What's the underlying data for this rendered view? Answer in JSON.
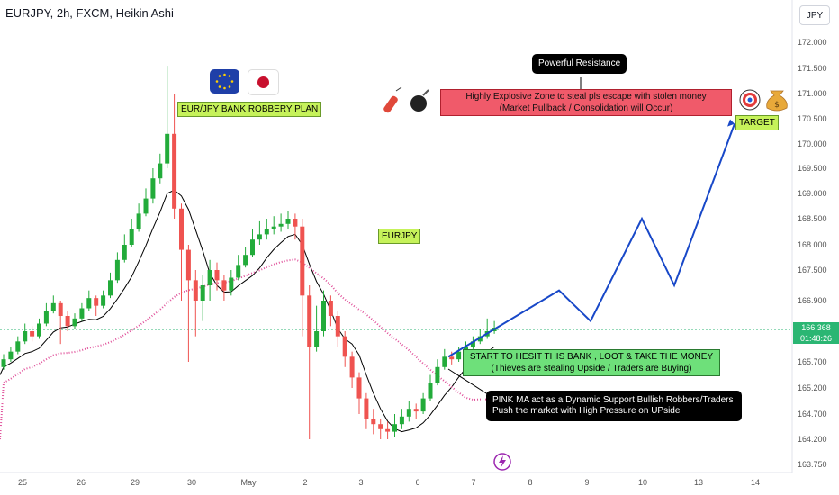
{
  "header": {
    "title": "EURJPY, 2h, FXCM, Heikin Ashi",
    "currency": "JPY"
  },
  "colors": {
    "bull": "#26a69a",
    "bullBright": "#22ab3a",
    "bear": "#ef5350",
    "ma_black": "#000000",
    "ma_pink": "#e0509a",
    "projection": "#1848c8",
    "priceLine": "#2bb673"
  },
  "annotations": {
    "pair_plan": "EUR/JPY BANK ROBBERY PLAN",
    "symbol": "EURJPY",
    "resistance": "Powerful Resistance",
    "zone_line1": "Highly Explosive Zone to steal pls escape with stolen money",
    "zone_line2": "(Market Pullback / Consolidation will Occur)",
    "target": "TARGET",
    "entry_line1": "START TO HESIT THIS BANK , LOOT & TAKE THE MONEY",
    "entry_line2": "(Thieves are stealing Upside / Traders are Buying)",
    "ma_line1": "PINK MA act as a Dynamic Support Bullish Robbers/Traders",
    "ma_line2": "Push the market with High Pressure on UPside"
  },
  "current_price": {
    "value": "166.368",
    "countdown": "01:48:26"
  },
  "chart_data": {
    "type": "candlestick",
    "title": "EURJPY, 2h, FXCM, Heikin Ashi",
    "y_axis": {
      "ticks": [
        "172.000",
        "171.500",
        "171.000",
        "170.500",
        "170.000",
        "169.500",
        "169.000",
        "168.500",
        "168.000",
        "167.500",
        "166.900",
        "165.700",
        "165.200",
        "164.700",
        "164.200",
        "163.750"
      ],
      "range": [
        163.75,
        172.0
      ]
    },
    "x_axis": {
      "ticks": [
        "25",
        "26",
        "29",
        "30",
        "May",
        "2",
        "3",
        "6",
        "7",
        "8",
        "9",
        "10",
        "13",
        "14"
      ]
    },
    "key_levels": {
      "current": 166.368,
      "target": 170.4
    },
    "candles": [
      {
        "o": 165.6,
        "c": 165.75,
        "h": 165.85,
        "l": 165.55
      },
      {
        "o": 165.75,
        "c": 165.9,
        "h": 166.0,
        "l": 165.7
      },
      {
        "o": 165.9,
        "c": 166.1,
        "h": 166.2,
        "l": 165.85
      },
      {
        "o": 166.1,
        "c": 166.3,
        "h": 166.45,
        "l": 166.05
      },
      {
        "o": 166.3,
        "c": 166.2,
        "h": 166.4,
        "l": 166.1
      },
      {
        "o": 166.2,
        "c": 166.45,
        "h": 166.55,
        "l": 166.15
      },
      {
        "o": 166.45,
        "c": 166.7,
        "h": 166.85,
        "l": 166.4
      },
      {
        "o": 166.7,
        "c": 166.85,
        "h": 167.0,
        "l": 166.65
      },
      {
        "o": 166.85,
        "c": 166.6,
        "h": 166.9,
        "l": 166.05
      },
      {
        "o": 166.6,
        "c": 166.4,
        "h": 166.7,
        "l": 166.3
      },
      {
        "o": 166.4,
        "c": 166.55,
        "h": 166.65,
        "l": 166.35
      },
      {
        "o": 166.55,
        "c": 166.75,
        "h": 166.85,
        "l": 166.5
      },
      {
        "o": 166.75,
        "c": 166.95,
        "h": 167.1,
        "l": 166.7
      },
      {
        "o": 166.95,
        "c": 166.8,
        "h": 167.0,
        "l": 166.6
      },
      {
        "o": 166.8,
        "c": 167.0,
        "h": 167.1,
        "l": 166.75
      },
      {
        "o": 167.0,
        "c": 167.3,
        "h": 167.45,
        "l": 166.95
      },
      {
        "o": 167.3,
        "c": 167.7,
        "h": 167.85,
        "l": 167.25
      },
      {
        "o": 167.7,
        "c": 168.0,
        "h": 168.2,
        "l": 167.65
      },
      {
        "o": 168.0,
        "c": 168.3,
        "h": 168.5,
        "l": 167.95
      },
      {
        "o": 168.3,
        "c": 168.6,
        "h": 168.8,
        "l": 168.25
      },
      {
        "o": 168.6,
        "c": 168.9,
        "h": 169.1,
        "l": 168.55
      },
      {
        "o": 168.9,
        "c": 169.3,
        "h": 169.5,
        "l": 168.8
      },
      {
        "o": 169.3,
        "c": 169.6,
        "h": 169.8,
        "l": 169.2
      },
      {
        "o": 169.6,
        "c": 170.2,
        "h": 171.55,
        "l": 169.5
      },
      {
        "o": 170.2,
        "c": 168.7,
        "h": 171.0,
        "l": 168.5
      },
      {
        "o": 168.7,
        "c": 167.9,
        "h": 168.8,
        "l": 166.9
      },
      {
        "o": 167.9,
        "c": 167.3,
        "h": 168.0,
        "l": 165.7
      },
      {
        "o": 167.3,
        "c": 166.9,
        "h": 167.5,
        "l": 166.2
      },
      {
        "o": 166.9,
        "c": 167.2,
        "h": 167.4,
        "l": 166.5
      },
      {
        "o": 167.2,
        "c": 167.5,
        "h": 167.7,
        "l": 166.9
      },
      {
        "o": 167.5,
        "c": 167.3,
        "h": 167.65,
        "l": 167.1
      },
      {
        "o": 167.3,
        "c": 167.1,
        "h": 167.4,
        "l": 166.9
      },
      {
        "o": 167.1,
        "c": 167.35,
        "h": 167.5,
        "l": 167.0
      },
      {
        "o": 167.35,
        "c": 167.6,
        "h": 167.8,
        "l": 167.3
      },
      {
        "o": 167.6,
        "c": 167.8,
        "h": 167.95,
        "l": 167.55
      },
      {
        "o": 167.8,
        "c": 168.1,
        "h": 168.3,
        "l": 167.75
      },
      {
        "o": 168.1,
        "c": 168.2,
        "h": 168.45,
        "l": 168.0
      },
      {
        "o": 168.2,
        "c": 168.3,
        "h": 168.5,
        "l": 168.1
      },
      {
        "o": 168.3,
        "c": 168.35,
        "h": 168.55,
        "l": 168.2
      },
      {
        "o": 168.35,
        "c": 168.4,
        "h": 168.6,
        "l": 168.25
      },
      {
        "o": 168.4,
        "c": 168.5,
        "h": 168.65,
        "l": 168.3
      },
      {
        "o": 168.5,
        "c": 168.35,
        "h": 168.6,
        "l": 168.1
      },
      {
        "o": 168.35,
        "c": 167.0,
        "h": 168.5,
        "l": 166.2
      },
      {
        "o": 167.0,
        "c": 166.0,
        "h": 167.2,
        "l": 164.2
      },
      {
        "o": 166.0,
        "c": 166.3,
        "h": 166.8,
        "l": 165.9
      },
      {
        "o": 166.3,
        "c": 166.9,
        "h": 167.1,
        "l": 166.2
      },
      {
        "o": 166.9,
        "c": 166.6,
        "h": 167.0,
        "l": 166.4
      },
      {
        "o": 166.6,
        "c": 166.2,
        "h": 166.7,
        "l": 166.0
      },
      {
        "o": 166.2,
        "c": 165.8,
        "h": 166.3,
        "l": 165.6
      },
      {
        "o": 165.8,
        "c": 165.4,
        "h": 165.9,
        "l": 165.2
      },
      {
        "o": 165.4,
        "c": 165.0,
        "h": 165.5,
        "l": 164.7
      },
      {
        "o": 165.0,
        "c": 164.6,
        "h": 165.1,
        "l": 164.4
      },
      {
        "o": 164.6,
        "c": 164.5,
        "h": 164.8,
        "l": 164.3
      },
      {
        "o": 164.5,
        "c": 164.4,
        "h": 164.6,
        "l": 164.2
      },
      {
        "o": 164.4,
        "c": 164.35,
        "h": 164.55,
        "l": 164.2
      },
      {
        "o": 164.35,
        "c": 164.5,
        "h": 164.7,
        "l": 164.25
      },
      {
        "o": 164.5,
        "c": 164.65,
        "h": 164.8,
        "l": 164.4
      },
      {
        "o": 164.65,
        "c": 164.8,
        "h": 164.95,
        "l": 164.55
      },
      {
        "o": 164.8,
        "c": 164.75,
        "h": 164.9,
        "l": 164.6
      },
      {
        "o": 164.75,
        "c": 165.0,
        "h": 165.1,
        "l": 164.7
      },
      {
        "o": 165.0,
        "c": 165.3,
        "h": 165.45,
        "l": 164.95
      },
      {
        "o": 165.3,
        "c": 165.6,
        "h": 165.75,
        "l": 165.25
      },
      {
        "o": 165.6,
        "c": 165.8,
        "h": 165.95,
        "l": 165.55
      },
      {
        "o": 165.8,
        "c": 165.75,
        "h": 165.9,
        "l": 165.65
      },
      {
        "o": 165.75,
        "c": 165.9,
        "h": 166.0,
        "l": 165.7
      },
      {
        "o": 165.9,
        "c": 166.0,
        "h": 166.1,
        "l": 165.85
      },
      {
        "o": 166.0,
        "c": 166.1,
        "h": 166.2,
        "l": 165.95
      },
      {
        "o": 166.1,
        "c": 166.2,
        "h": 166.35,
        "l": 166.05
      },
      {
        "o": 166.2,
        "c": 166.3,
        "h": 166.55,
        "l": 166.15
      },
      {
        "o": 166.3,
        "c": 166.37,
        "h": 166.5,
        "l": 166.25
      }
    ],
    "projection": [
      [
        165.8,
        0
      ],
      [
        167.1,
        1
      ],
      [
        166.5,
        2
      ],
      [
        168.5,
        3
      ],
      [
        167.2,
        4
      ],
      [
        170.4,
        5
      ]
    ]
  }
}
